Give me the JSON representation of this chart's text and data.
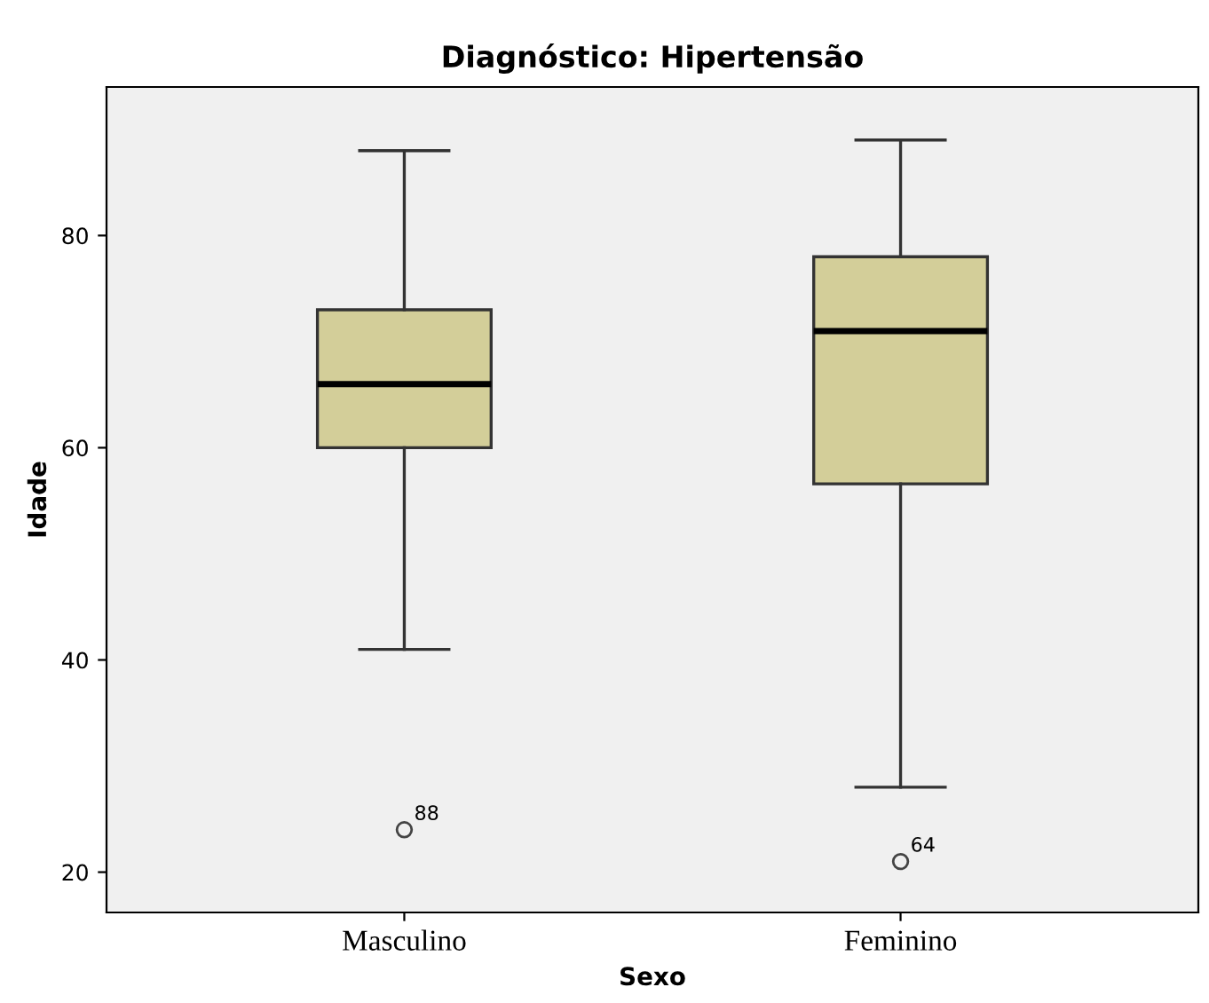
{
  "chart_data": {
    "type": "box",
    "title": "Diagnóstico: Hipertensão",
    "xlabel": "Sexo",
    "ylabel": "Idade",
    "categories": [
      "Masculino",
      "Feminino"
    ],
    "color": "#d3ce99",
    "boxes": [
      {
        "low": 41,
        "q1": 60,
        "median": 66,
        "q3": 73,
        "high": 88,
        "outliers": [
          24
        ]
      },
      {
        "low": 28,
        "q1": 56.6,
        "median": 71,
        "q3": 78,
        "high": 89,
        "outliers": [
          21
        ]
      }
    ],
    "annotations": [
      "88",
      "64"
    ],
    "ylim": [
      16.2,
      94
    ],
    "yticks": [
      20,
      40,
      60,
      80
    ],
    "grid": false,
    "legend": false
  }
}
